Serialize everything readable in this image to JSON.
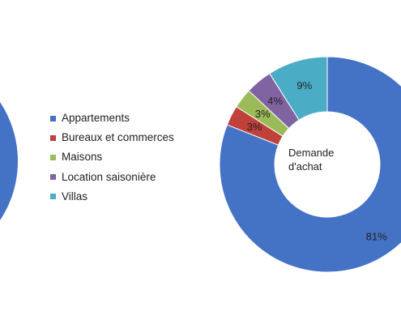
{
  "chart_data": [
    {
      "type": "pie",
      "categories": [
        "Appartements"
      ],
      "values": [
        100
      ],
      "colors": [
        "#4472C4"
      ],
      "note_visible_fragment": "partially cut off at left edge"
    },
    {
      "type": "pie",
      "style": "doughnut",
      "center_label": "Demande d'achat",
      "categories": [
        "Appartements",
        "Bureaux et commerces",
        "Maisons",
        "Location saisonière",
        "Villas"
      ],
      "values": [
        81,
        3,
        3,
        4,
        9
      ],
      "data_labels": [
        "81%",
        "3%",
        "3%",
        "4%",
        "9%"
      ],
      "colors": [
        "#4472C4",
        "#C0403C",
        "#9BBB59",
        "#8064A2",
        "#4BACC6"
      ]
    }
  ],
  "legend": {
    "placement": "center",
    "items": [
      {
        "label": "Appartements",
        "color": "#4472C4"
      },
      {
        "label": "Bureaux et commerces",
        "color": "#C0403C"
      },
      {
        "label": "Maisons",
        "color": "#9BBB59"
      },
      {
        "label": "Location saisonière",
        "color": "#8064A2"
      },
      {
        "label": "Villas",
        "color": "#4BACC6"
      }
    ]
  }
}
